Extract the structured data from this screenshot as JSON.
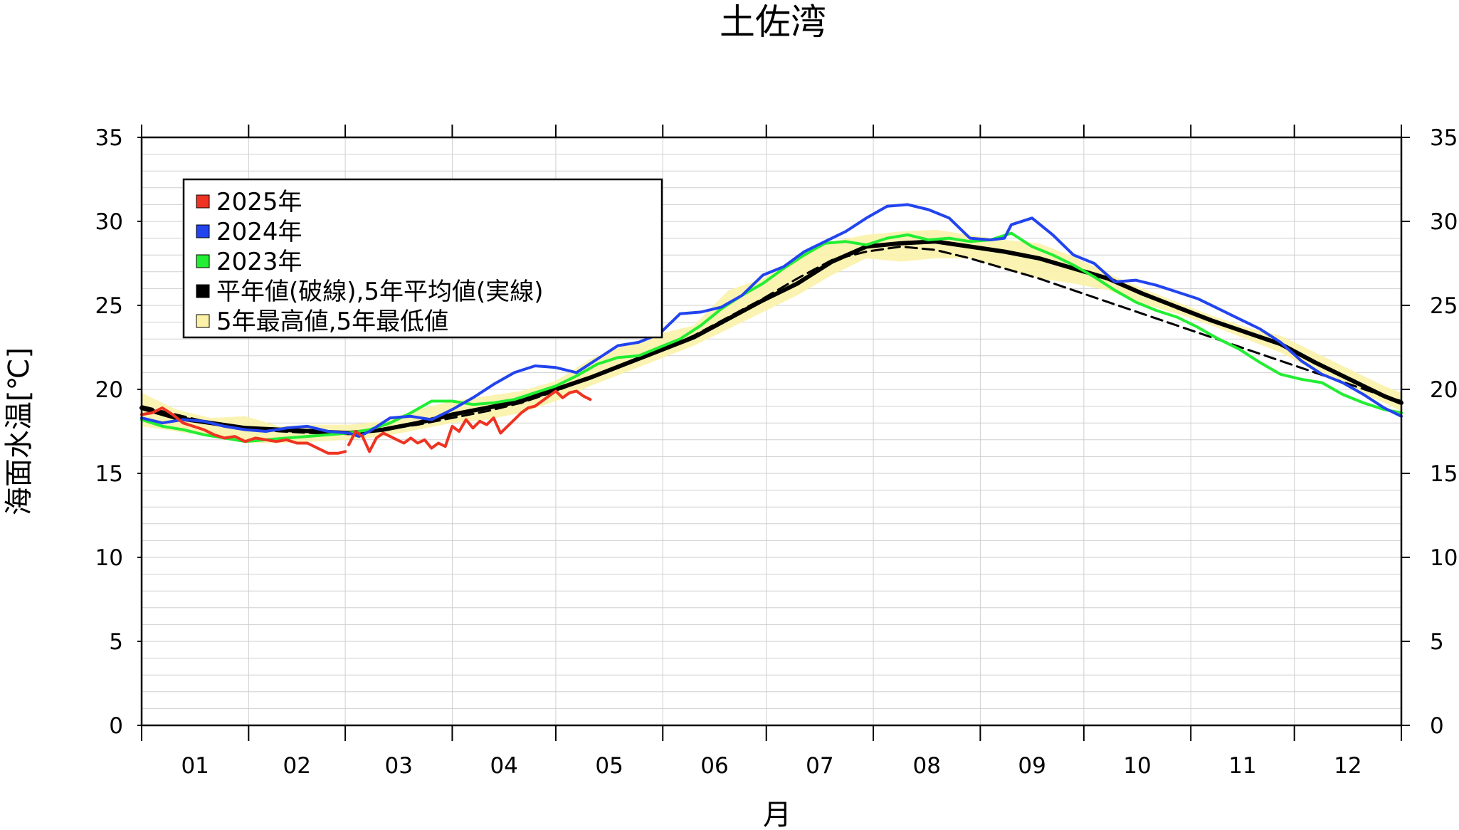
{
  "chart_data": {
    "type": "line",
    "title": "土佐湾",
    "xlabel": "月",
    "ylabel": "海面水温[℃]",
    "ylim": [
      0,
      35
    ],
    "yticks": [
      0,
      5,
      10,
      15,
      20,
      25,
      30,
      35
    ],
    "xlim": [
      0,
      365
    ],
    "x_unit": "day of year",
    "month_labels": [
      "01",
      "02",
      "03",
      "04",
      "05",
      "06",
      "07",
      "08",
      "09",
      "10",
      "11",
      "12"
    ],
    "grid": true,
    "legend_position": "top-left",
    "legend": [
      {
        "label": "2025年",
        "color": "#ee3322",
        "fill": true
      },
      {
        "label": "2024年",
        "color": "#2244ee",
        "fill": true
      },
      {
        "label": "2023年",
        "color": "#22ee33",
        "fill": true
      },
      {
        "label": "平年値(破線),5年平均値(実線)",
        "color": "#000000",
        "fill": true
      },
      {
        "label": "5年最高値,5年最低値",
        "color": "#fbf2a8",
        "fill": true
      }
    ],
    "series": [
      {
        "name": "2025年",
        "color": "#ee3322",
        "x": [
          0,
          3,
          6,
          9,
          12,
          15,
          18,
          21,
          24,
          27,
          30,
          33,
          36,
          39,
          42,
          45,
          48,
          51,
          54,
          57,
          59,
          null,
          60,
          62,
          64,
          66,
          68,
          70,
          72,
          74,
          76,
          78,
          80,
          82,
          84,
          86,
          88,
          90,
          92,
          94,
          96,
          98,
          100,
          102,
          104,
          106,
          108,
          110,
          112,
          114,
          116,
          118,
          120,
          122,
          124,
          126,
          128,
          130
        ],
        "y": [
          18.5,
          18.6,
          18.9,
          18.5,
          18.0,
          17.8,
          17.6,
          17.3,
          17.1,
          17.2,
          16.9,
          17.1,
          17.0,
          16.9,
          17.0,
          16.8,
          16.8,
          16.5,
          16.2,
          16.2,
          16.3,
          null,
          16.7,
          17.5,
          17.2,
          16.3,
          17.1,
          17.4,
          17.2,
          17.0,
          16.8,
          17.1,
          16.8,
          17.0,
          16.5,
          16.8,
          16.6,
          17.8,
          17.5,
          18.2,
          17.7,
          18.1,
          17.9,
          18.3,
          17.4,
          17.8,
          18.2,
          18.6,
          18.9,
          19.0,
          19.3,
          19.6,
          19.9,
          19.5,
          19.8,
          19.9,
          19.6,
          19.4
        ]
      },
      {
        "name": "2024年",
        "color": "#2244ee",
        "x": [
          0,
          6,
          12,
          18,
          24,
          30,
          36,
          42,
          48,
          54,
          60,
          63,
          66,
          72,
          78,
          84,
          90,
          96,
          102,
          108,
          114,
          120,
          126,
          132,
          138,
          144,
          150,
          156,
          162,
          168,
          174,
          180,
          186,
          192,
          198,
          204,
          210,
          216,
          222,
          228,
          234,
          240,
          246,
          250,
          252,
          258,
          264,
          270,
          276,
          282,
          288,
          294,
          300,
          306,
          312,
          318,
          324,
          330,
          336,
          342,
          348,
          354,
          360,
          365
        ],
        "y": [
          18.3,
          18.0,
          18.2,
          18.1,
          17.8,
          17.6,
          17.5,
          17.7,
          17.8,
          17.5,
          17.4,
          17.2,
          17.5,
          18.3,
          18.4,
          18.2,
          18.8,
          19.5,
          20.3,
          21.0,
          21.4,
          21.3,
          21.0,
          21.8,
          22.6,
          22.8,
          23.3,
          24.5,
          24.6,
          24.9,
          25.6,
          26.8,
          27.3,
          28.2,
          28.8,
          29.4,
          30.2,
          30.9,
          31.0,
          30.7,
          30.2,
          29.0,
          28.9,
          29.0,
          29.8,
          30.2,
          29.2,
          28.0,
          27.5,
          26.4,
          26.5,
          26.2,
          25.8,
          25.4,
          24.8,
          24.2,
          23.6,
          22.8,
          21.7,
          20.9,
          20.4,
          19.7,
          18.9,
          18.4
        ]
      },
      {
        "name": "2023年",
        "color": "#22ee33",
        "x": [
          0,
          6,
          12,
          18,
          24,
          30,
          36,
          42,
          48,
          54,
          60,
          66,
          72,
          78,
          84,
          90,
          96,
          102,
          108,
          114,
          120,
          126,
          132,
          138,
          144,
          150,
          156,
          162,
          168,
          174,
          180,
          186,
          192,
          198,
          204,
          210,
          216,
          222,
          228,
          234,
          240,
          246,
          252,
          258,
          264,
          270,
          276,
          282,
          288,
          294,
          300,
          306,
          312,
          318,
          324,
          330,
          336,
          342,
          348,
          354,
          360,
          365
        ],
        "y": [
          18.2,
          17.8,
          17.6,
          17.3,
          17.1,
          16.9,
          17.0,
          17.1,
          17.2,
          17.3,
          17.4,
          17.6,
          18.0,
          18.6,
          19.3,
          19.3,
          19.1,
          19.2,
          19.4,
          19.8,
          20.2,
          20.8,
          21.5,
          21.9,
          22.0,
          22.5,
          23.0,
          23.8,
          24.8,
          25.6,
          26.3,
          27.2,
          28.0,
          28.7,
          28.8,
          28.6,
          29.0,
          29.2,
          28.9,
          29.0,
          28.8,
          28.9,
          29.3,
          28.5,
          28.0,
          27.4,
          26.7,
          25.9,
          25.2,
          24.7,
          24.3,
          23.7,
          23.0,
          22.4,
          21.6,
          20.9,
          20.6,
          20.4,
          19.7,
          19.2,
          18.8,
          18.6
        ]
      },
      {
        "name": "5年平均値(実線)",
        "color": "#000000",
        "style": "solid",
        "x": [
          0,
          10,
          20,
          30,
          40,
          50,
          60,
          70,
          80,
          90,
          100,
          110,
          120,
          130,
          140,
          150,
          160,
          170,
          180,
          190,
          200,
          210,
          220,
          230,
          240,
          250,
          260,
          270,
          280,
          290,
          300,
          310,
          320,
          330,
          340,
          350,
          360,
          365
        ],
        "y": [
          18.9,
          18.3,
          18.0,
          17.7,
          17.6,
          17.5,
          17.4,
          17.6,
          18.0,
          18.5,
          18.9,
          19.3,
          20.0,
          20.7,
          21.5,
          22.3,
          23.1,
          24.2,
          25.3,
          26.3,
          27.6,
          28.5,
          28.7,
          28.8,
          28.5,
          28.2,
          27.8,
          27.2,
          26.6,
          25.7,
          24.9,
          24.1,
          23.4,
          22.7,
          21.6,
          20.6,
          19.6,
          19.2
        ]
      },
      {
        "name": "平年値(破線)",
        "color": "#000000",
        "style": "dashed",
        "x": [
          0,
          10,
          20,
          30,
          40,
          50,
          60,
          70,
          80,
          90,
          100,
          110,
          120,
          130,
          140,
          150,
          160,
          170,
          180,
          190,
          200,
          210,
          220,
          230,
          240,
          250,
          260,
          270,
          280,
          290,
          300,
          310,
          320,
          330,
          340,
          350,
          360,
          365
        ],
        "y": [
          19.0,
          18.5,
          18.0,
          17.7,
          17.5,
          17.4,
          17.4,
          17.6,
          17.9,
          18.3,
          18.7,
          19.2,
          19.9,
          20.7,
          21.5,
          22.3,
          23.2,
          24.3,
          25.4,
          26.6,
          27.7,
          28.2,
          28.5,
          28.3,
          27.8,
          27.2,
          26.6,
          25.9,
          25.2,
          24.5,
          23.8,
          23.1,
          22.4,
          21.7,
          21.0,
          20.3,
          19.6,
          19.3
        ]
      }
    ],
    "band": {
      "name": "5年最高値,5年最低値",
      "color": "#fbf2a8",
      "x": [
        0,
        10,
        20,
        30,
        40,
        50,
        60,
        70,
        80,
        90,
        100,
        110,
        120,
        130,
        140,
        150,
        160,
        170,
        180,
        190,
        200,
        210,
        220,
        230,
        240,
        250,
        260,
        270,
        280,
        290,
        300,
        310,
        320,
        330,
        340,
        350,
        360,
        365
      ],
      "upper": [
        19.8,
        18.8,
        18.3,
        18.4,
        17.8,
        17.9,
        17.9,
        18.1,
        18.8,
        19.3,
        19.6,
        19.9,
        20.5,
        21.8,
        22.6,
        23.3,
        23.8,
        25.9,
        26.6,
        27.9,
        28.8,
        29.2,
        29.4,
        29.5,
        29.2,
        28.9,
        28.7,
        27.9,
        26.9,
        26.0,
        25.2,
        24.4,
        23.7,
        23.2,
        22.2,
        21.2,
        20.2,
        19.8
      ],
      "lower": [
        17.8,
        17.5,
        17.2,
        16.8,
        16.8,
        16.9,
        17.0,
        17.2,
        17.6,
        18.0,
        18.2,
        18.6,
        19.3,
        20.2,
        21.0,
        21.8,
        22.6,
        23.6,
        24.6,
        25.6,
        26.8,
        27.8,
        27.6,
        27.8,
        27.8,
        27.2,
        26.6,
        26.3,
        25.9,
        25.1,
        24.5,
        23.8,
        23.0,
        22.2,
        21.1,
        20.1,
        19.2,
        18.7
      ]
    }
  }
}
